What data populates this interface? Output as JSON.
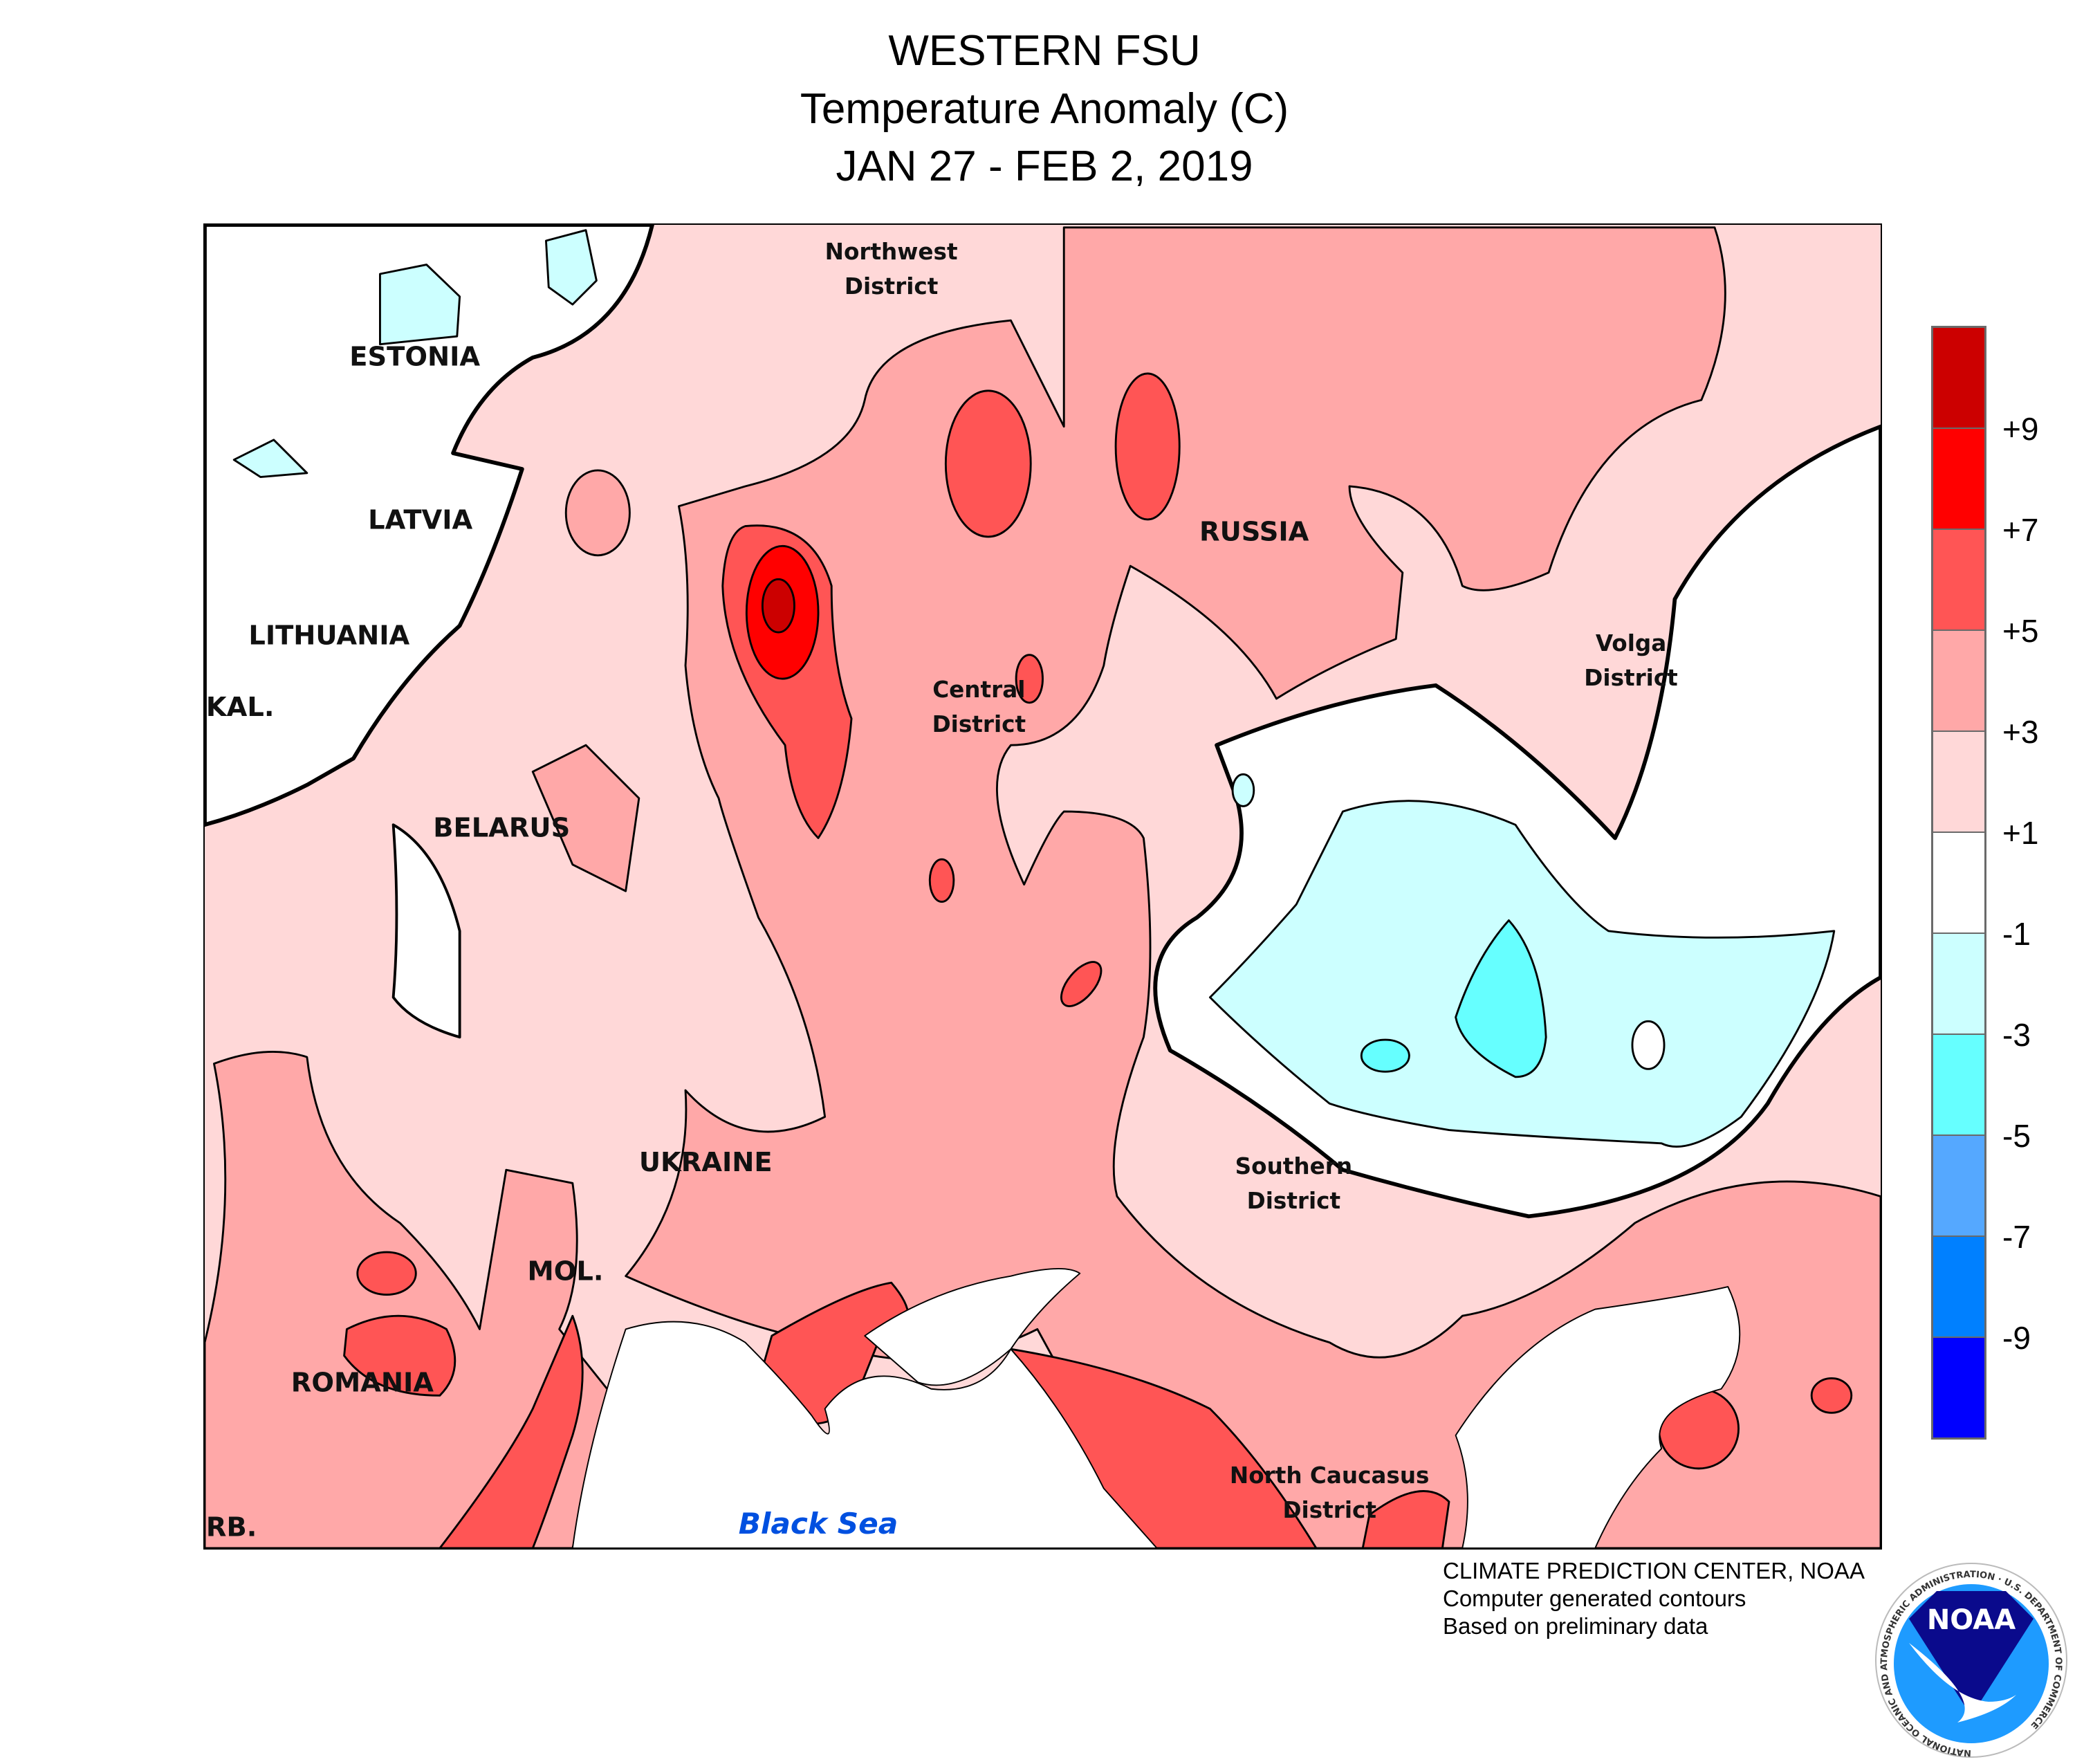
{
  "title": {
    "region": "WESTERN FSU",
    "variable": "Temperature Anomaly (C)",
    "period": "JAN 27 - FEB 2, 2019"
  },
  "colorbar": {
    "colors": [
      "#CC0000",
      "#FF0000",
      "#FF5555",
      "#FFA8A8",
      "#FFD8D8",
      "#FFFFFF",
      "#CCFFFF",
      "#66FFFF",
      "#55A8FF",
      "#0080FF",
      "#0000FF"
    ],
    "labels": [
      "+9",
      "+7",
      "+5",
      "+3",
      "+1",
      "-1",
      "-3",
      "-5",
      "-7",
      "-9"
    ]
  },
  "map": {
    "countries": {
      "estonia": "ESTONIA",
      "latvia": "LATVIA",
      "lithuania": "LITHUANIA",
      "kaliningrad": "KAL.",
      "belarus": "BELARUS",
      "russia": "RUSSIA",
      "ukraine": "UKRAINE",
      "moldova": "MOL.",
      "romania": "ROMANIA",
      "serbia": "RB."
    },
    "districts": {
      "northwest": [
        "Northwest",
        "District"
      ],
      "central": [
        "Central",
        "District"
      ],
      "volga": [
        "Volga",
        "District"
      ],
      "southern": [
        "Southern",
        "District"
      ],
      "north_caucasus": [
        "North Caucasus",
        "District"
      ]
    },
    "sea": "Black Sea"
  },
  "credits": {
    "line1": "CLIMATE PREDICTION CENTER, NOAA",
    "line2": "Computer generated contours",
    "line3": "Based on preliminary data"
  },
  "logo": {
    "text": "NOAA",
    "ring": "NATIONAL OCEANIC AND ATMOSPHERIC ADMINISTRATION · U.S. DEPARTMENT OF COMMERCE"
  }
}
